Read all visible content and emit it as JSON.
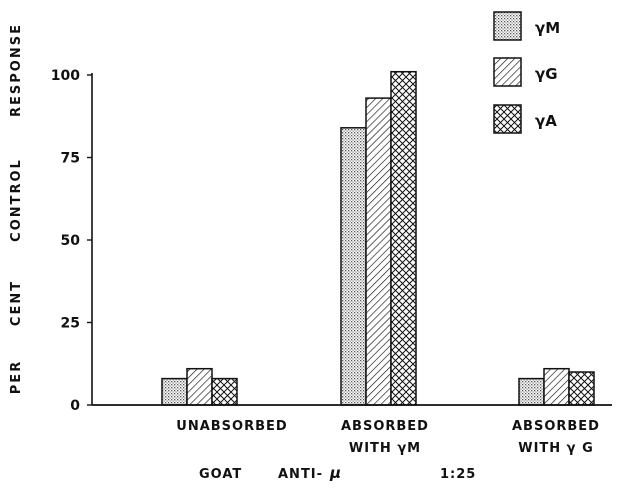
{
  "chart_data": {
    "type": "bar",
    "ylabel": "PER CENT CONTROL RESPONSE",
    "xlabel_parts": [
      "GOAT",
      "ANTI-",
      "μ",
      "1:25"
    ],
    "ylim": [
      0,
      100
    ],
    "yticks": [
      0,
      25,
      50,
      75,
      100
    ],
    "grid": false,
    "legend_position": "top-right",
    "categories": [
      {
        "line1": "UNABSORBED",
        "line2": ""
      },
      {
        "line1": "ABSORBED",
        "line2": "WITH γM"
      },
      {
        "line1": "ABSORBED",
        "line2": "WITH γ G"
      }
    ],
    "series": [
      {
        "name": "γM",
        "pattern": "dots",
        "values": [
          8,
          84,
          8
        ]
      },
      {
        "name": "γG",
        "pattern": "diagonal",
        "values": [
          11,
          93,
          11
        ]
      },
      {
        "name": "γA",
        "pattern": "crosshatch",
        "values": [
          8,
          101,
          10
        ]
      }
    ]
  }
}
